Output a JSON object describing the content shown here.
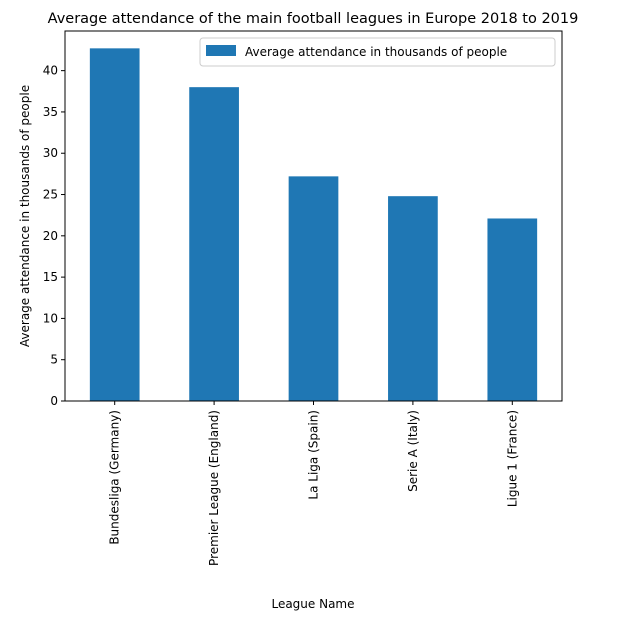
{
  "chart_data": {
    "type": "bar",
    "title": "Average attendance of the main football leagues in Europe 2018 to 2019",
    "xlabel": "League Name",
    "ylabel": "Average attendance in thousands of people",
    "categories": [
      "Bundesliga (Germany)",
      "Premier League (England)",
      "La Liga (Spain)",
      "Serie A (Italy)",
      "Ligue 1 (France)"
    ],
    "series": [
      {
        "name": "Average attendance in thousands of people",
        "values": [
          42.7,
          38.0,
          27.2,
          24.8,
          22.1
        ],
        "color": "#1f77b4"
      }
    ],
    "ylim": [
      0,
      44.8
    ],
    "yticks": [
      0,
      5,
      10,
      15,
      20,
      25,
      30,
      35,
      40
    ],
    "grid": false,
    "legend_position": "top-right"
  }
}
